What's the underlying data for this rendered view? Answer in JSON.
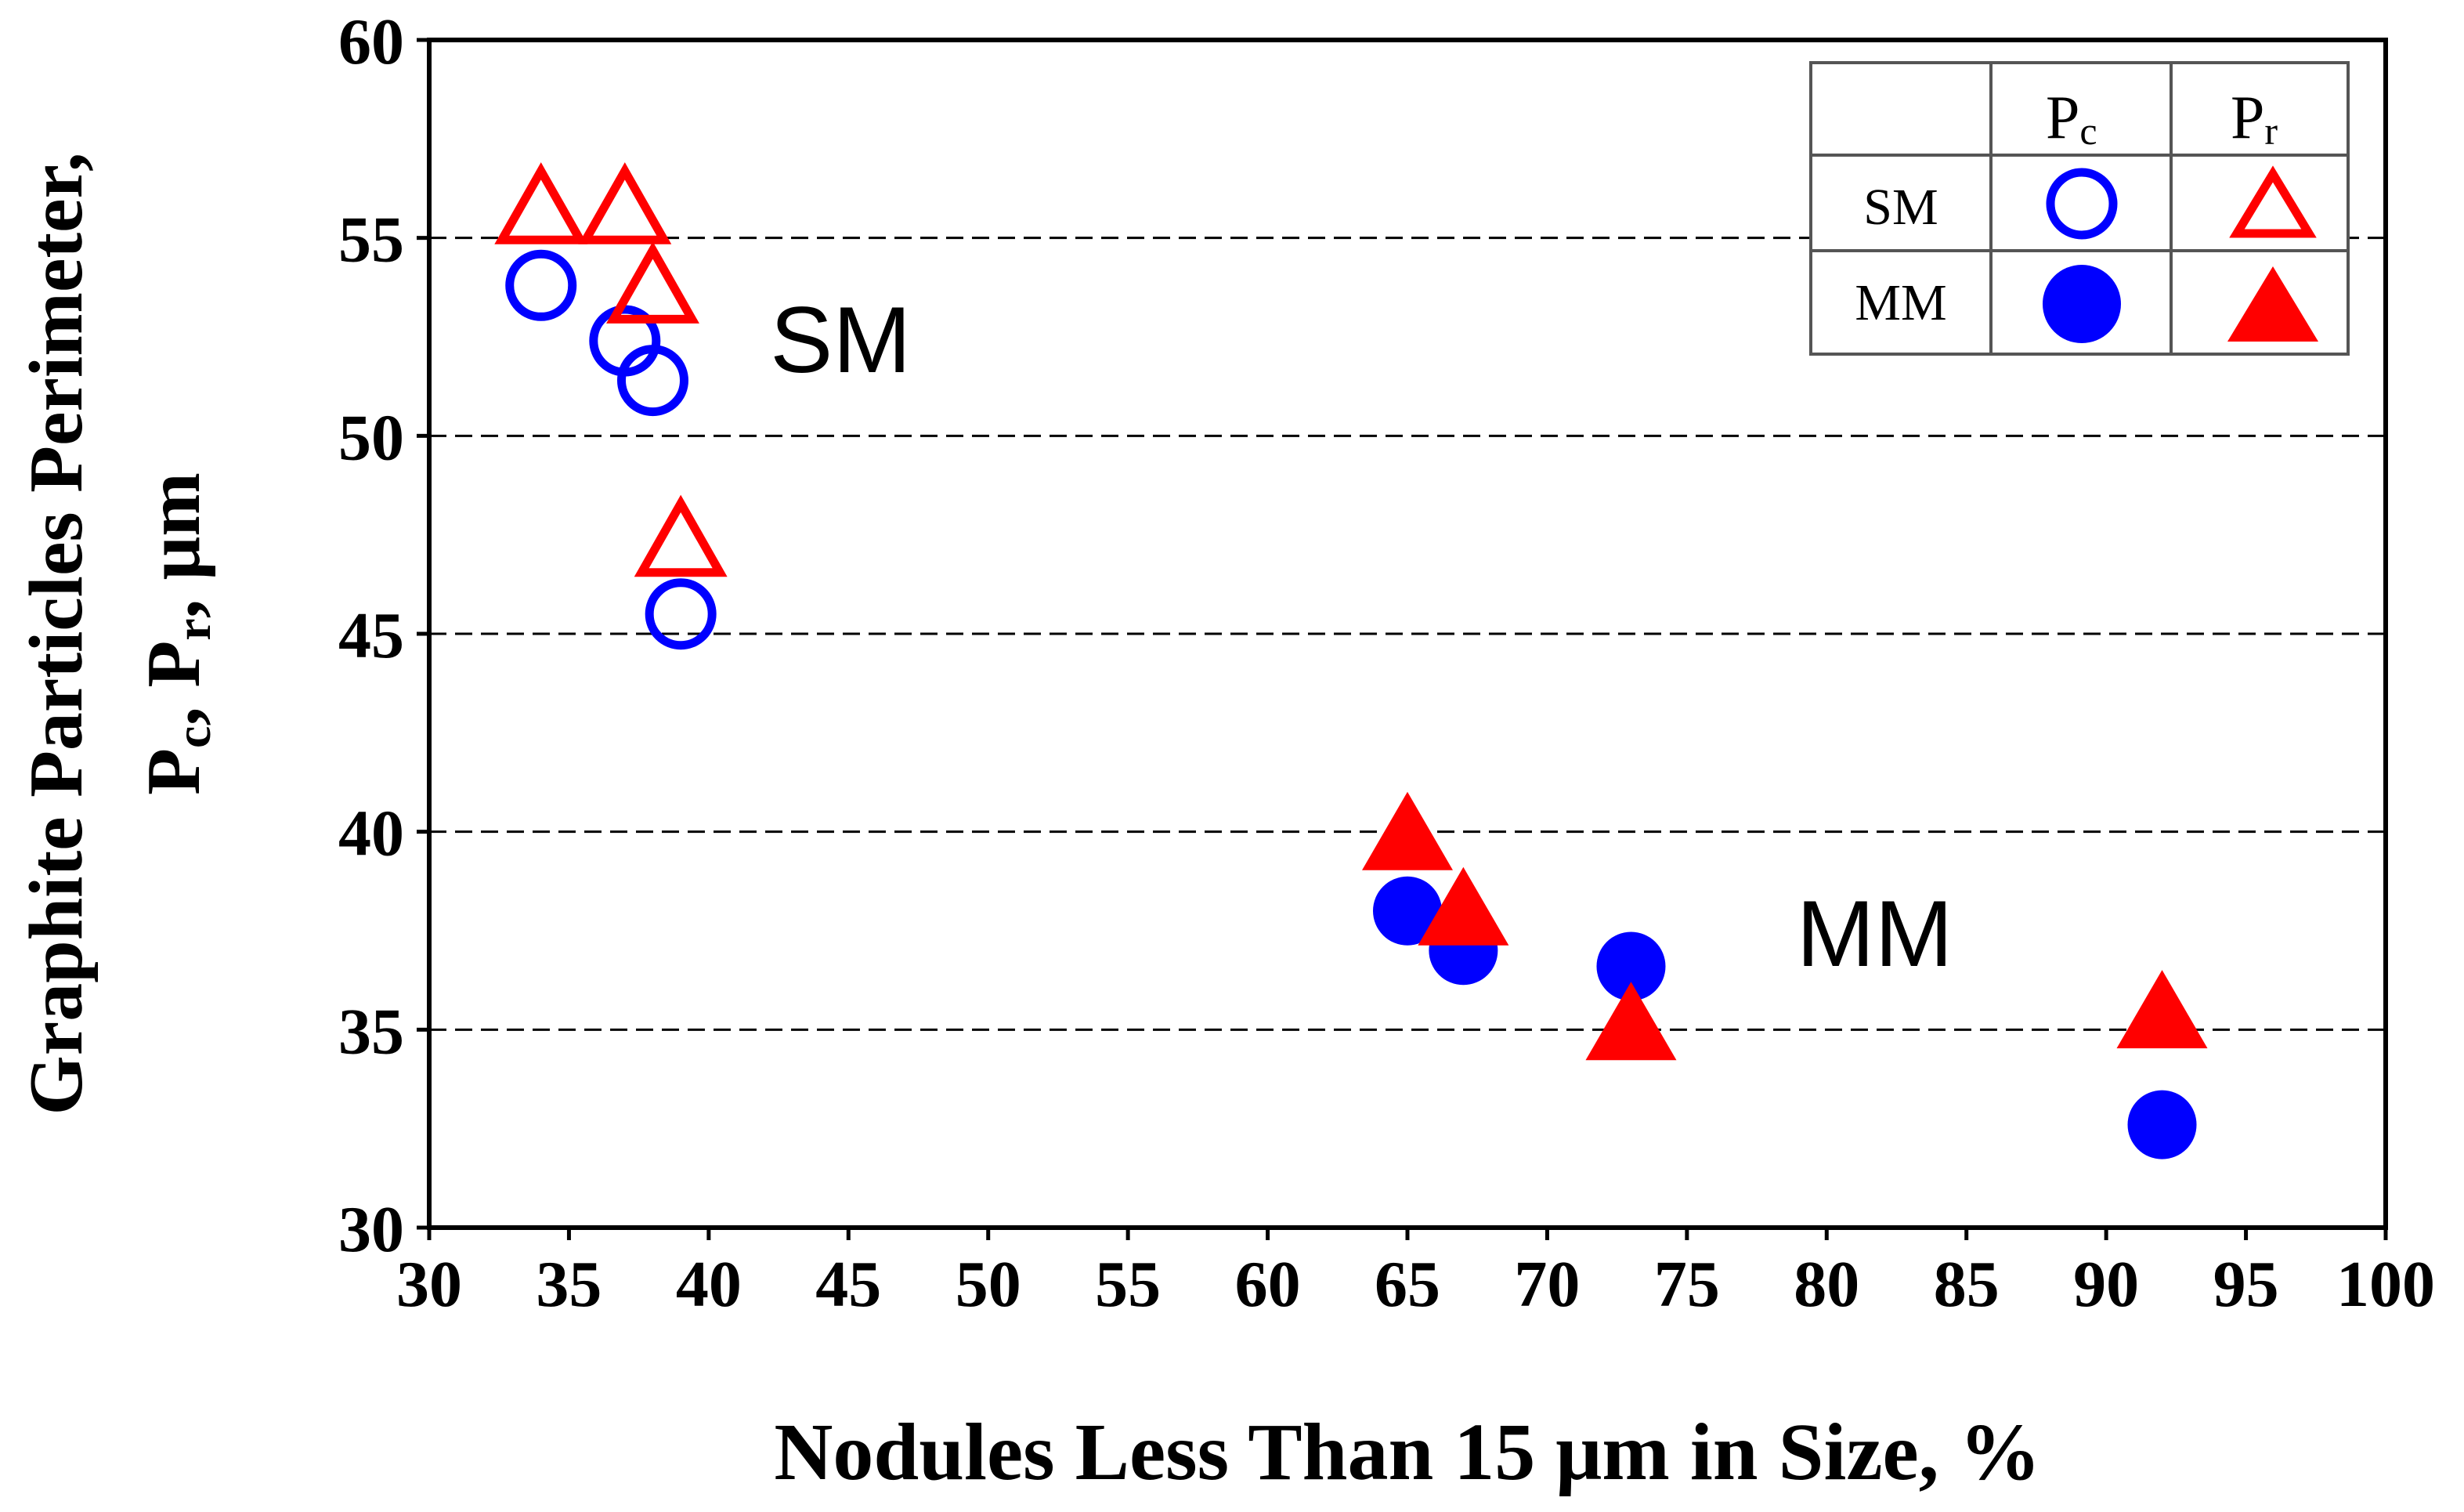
{
  "chart_data": {
    "type": "scatter",
    "title": "",
    "xlabel": "Nodules Less Than 15 μm in Size, %",
    "ylabel": {
      "line1": "Graphite Particles Perimeter,",
      "p": "P",
      "c": "c",
      "sep1": ", ",
      "r": "r",
      "sep2": ", ",
      "unit": "μm"
    },
    "xlim": [
      30,
      100
    ],
    "ylim": [
      30,
      60
    ],
    "x_ticks": [
      "30",
      "35",
      "40",
      "45",
      "50",
      "55",
      "60",
      "65",
      "70",
      "75",
      "80",
      "85",
      "90",
      "95",
      "100"
    ],
    "y_ticks": [
      "30",
      "35",
      "40",
      "45",
      "50",
      "55",
      "60"
    ],
    "grid": "horizontal dashed",
    "series": [
      {
        "name": "SM Pc",
        "marker": "circle-open",
        "color": "#0000ff",
        "points": [
          [
            34,
            53.8
          ],
          [
            37,
            52.4
          ],
          [
            38,
            51.4
          ],
          [
            39,
            45.5
          ]
        ]
      },
      {
        "name": "SM Pr",
        "marker": "triangle-open",
        "color": "#ff0000",
        "points": [
          [
            34,
            55.7
          ],
          [
            37,
            55.7
          ],
          [
            38,
            53.7
          ],
          [
            39,
            47.3
          ]
        ]
      },
      {
        "name": "MM Pc",
        "marker": "circle-filled",
        "color": "#0000ff",
        "points": [
          [
            65,
            38
          ],
          [
            67,
            37
          ],
          [
            73,
            36.6
          ],
          [
            92,
            32.6
          ]
        ]
      },
      {
        "name": "MM Pr",
        "marker": "triangle-filled",
        "color": "#ff0000",
        "points": [
          [
            65,
            39.9
          ],
          [
            67,
            38
          ],
          [
            73,
            35.1
          ],
          [
            92,
            35.4
          ]
        ]
      }
    ],
    "annotations": [
      {
        "text": "SM",
        "x": 45,
        "y": 52.4
      },
      {
        "text": "MM",
        "x": 82,
        "y": 37.4
      }
    ],
    "legend": {
      "position": "top-right",
      "header_pc": {
        "p": "P",
        "sub": "c"
      },
      "header_pr": {
        "p": "P",
        "sub": "r"
      },
      "rows": [
        "SM",
        "MM"
      ]
    }
  }
}
